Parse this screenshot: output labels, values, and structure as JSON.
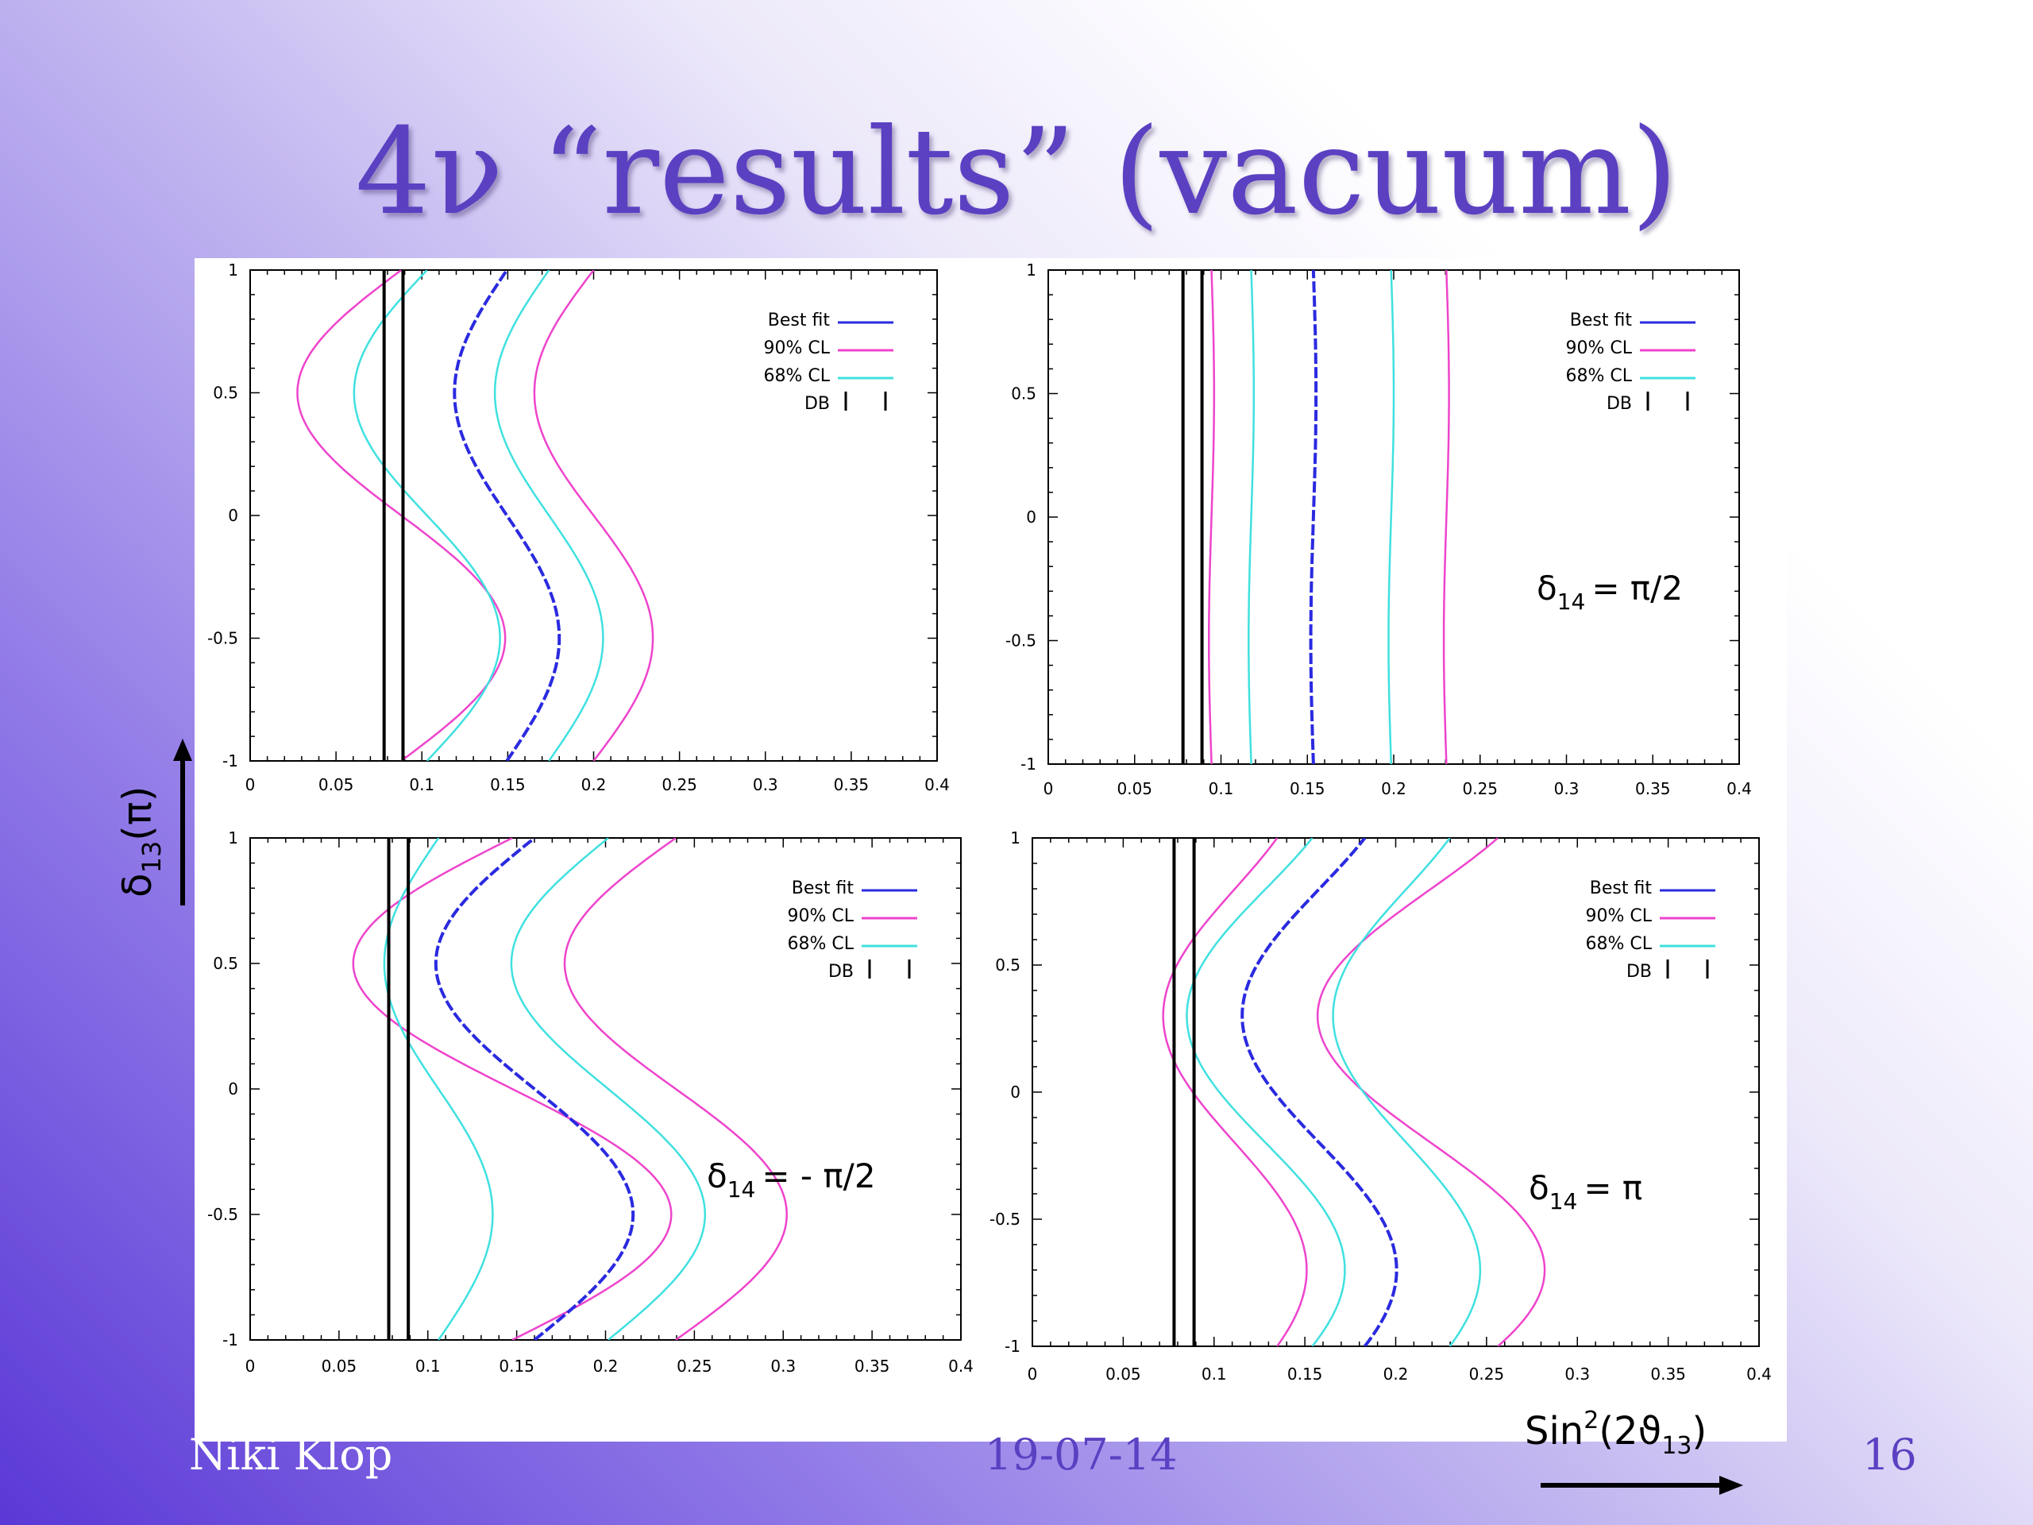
{
  "slide": {
    "title": "4ν “results” (vacuum)",
    "author": "Niki Klop",
    "date": "19-07-14",
    "page": "16",
    "y_axis_label": {
      "main": "δ",
      "sub": "13",
      "rest": "(π)"
    },
    "x_axis_label": {
      "pre": "Sin",
      "sup": "2",
      "mid": "(2ϑ",
      "sub": "13",
      "post": ")"
    }
  },
  "colors": {
    "best_fit": "#2a2ae0",
    "cl90": "#ee44cc",
    "cl68": "#40e0e0",
    "db": "#000000",
    "title": "#5b40c2"
  },
  "chart_data": [
    {
      "type": "line",
      "panel": "top-left",
      "annotation": null,
      "xlim": [
        0,
        0.4
      ],
      "ylim": [
        -1,
        1
      ],
      "xticks": [
        "0",
        "0.05",
        "0.1",
        "0.15",
        "0.2",
        "0.25",
        "0.3",
        "0.35",
        "0.4"
      ],
      "yticks": [
        "1",
        "0.5",
        "0",
        "-0.5",
        "-1"
      ],
      "legend": [
        "Best fit",
        "90% CL",
        "68% CL",
        "DB"
      ],
      "legend_position": "top-right",
      "db_lines": [
        0.078,
        0.089
      ],
      "series": [
        {
          "name": "90% CL",
          "role": "cl90",
          "c": 0.088,
          "a": 0.0605,
          "phase": -0.5
        },
        {
          "name": "90% CL",
          "role": "cl90",
          "c": 0.2,
          "a": 0.0345,
          "phase": -0.5
        },
        {
          "name": "68% CL",
          "role": "cl68",
          "c": 0.103,
          "a": 0.0425,
          "phase": -0.5
        },
        {
          "name": "68% CL",
          "role": "cl68",
          "c": 0.174,
          "a": 0.0315,
          "phase": -0.5
        },
        {
          "name": "Best fit",
          "role": "best",
          "c": 0.1495,
          "a": 0.0305,
          "phase": -0.5
        }
      ]
    },
    {
      "type": "line",
      "panel": "top-right",
      "annotation": {
        "main": "δ",
        "sub": "14",
        "rest": "= π/2"
      },
      "xlim": [
        0,
        0.4
      ],
      "ylim": [
        -1,
        1
      ],
      "xticks": [
        "0",
        "0.05",
        "0.1",
        "0.15",
        "0.2",
        "0.25",
        "0.3",
        "0.35",
        "0.4"
      ],
      "yticks": [
        "1",
        "0.5",
        "0",
        "-0.5",
        "-1"
      ],
      "legend": [
        "Best fit",
        "90% CL",
        "68% CL",
        "DB"
      ],
      "legend_position": "top-right",
      "db_lines": [
        0.078,
        0.089
      ],
      "series": [
        {
          "name": "90% CL",
          "role": "cl90",
          "c": 0.0945,
          "a": 0.0015,
          "phase": 0.5
        },
        {
          "name": "90% CL",
          "role": "cl90",
          "c": 0.2305,
          "a": 0.0015,
          "phase": 0.5
        },
        {
          "name": "68% CL",
          "role": "cl68",
          "c": 0.1175,
          "a": 0.0015,
          "phase": 0.5
        },
        {
          "name": "68% CL",
          "role": "cl68",
          "c": 0.1985,
          "a": 0.0015,
          "phase": 0.5
        },
        {
          "name": "Best fit",
          "role": "best",
          "c": 0.1535,
          "a": 0.0015,
          "phase": 0.5
        }
      ]
    },
    {
      "type": "line",
      "panel": "bottom-left",
      "annotation": {
        "main": "δ",
        "sub": "14",
        "rest": "= - π/2"
      },
      "xlim": [
        0,
        0.4
      ],
      "ylim": [
        -1,
        1
      ],
      "xticks": [
        "0",
        "0.05",
        "0.1",
        "0.15",
        "0.2",
        "0.25",
        "0.3",
        "0.35",
        "0.4"
      ],
      "yticks": [
        "1",
        "0.5",
        "0",
        "-0.5",
        "-1"
      ],
      "legend": [
        "Best fit",
        "90% CL",
        "68% CL",
        "DB"
      ],
      "legend_position": "top-right",
      "db_lines": [
        0.078,
        0.089
      ],
      "series": [
        {
          "name": "90% CL",
          "role": "cl90",
          "c": 0.1475,
          "a": 0.0895,
          "phase": -0.5
        },
        {
          "name": "90% CL",
          "role": "cl90",
          "c": 0.2395,
          "a": 0.0625,
          "phase": -0.5
        },
        {
          "name": "68% CL",
          "role": "cl68",
          "c": 0.106,
          "a": 0.0305,
          "phase": -0.5
        },
        {
          "name": "68% CL",
          "role": "cl68",
          "c": 0.2015,
          "a": 0.0545,
          "phase": -0.5
        },
        {
          "name": "Best fit",
          "role": "best",
          "c": 0.16,
          "a": 0.0555,
          "phase": -0.5
        }
      ]
    },
    {
      "type": "line",
      "panel": "bottom-right",
      "annotation": {
        "main": "δ",
        "sub": "14",
        "rest": "= π"
      },
      "xlim": [
        0,
        0.4
      ],
      "ylim": [
        -1,
        1
      ],
      "xticks": [
        "0",
        "0.05",
        "0.1",
        "0.15",
        "0.2",
        "0.25",
        "0.3",
        "0.35",
        "0.4"
      ],
      "yticks": [
        "1",
        "0.5",
        "0",
        "-0.5",
        "-1"
      ],
      "legend": [
        "Best fit",
        "90% CL",
        "68% CL",
        "DB"
      ],
      "legend_position": "top-right",
      "db_lines": [
        0.078,
        0.089
      ],
      "series": [
        {
          "name": "90% CL",
          "role": "cl90",
          "c": 0.1115,
          "a": 0.0395,
          "phase": -0.7
        },
        {
          "name": "90% CL",
          "role": "cl90",
          "c": 0.2195,
          "a": 0.0625,
          "phase": -0.7
        },
        {
          "name": "68% CL",
          "role": "cl68",
          "c": 0.1285,
          "a": 0.0435,
          "phase": -0.7
        },
        {
          "name": "68% CL",
          "role": "cl68",
          "c": 0.206,
          "a": 0.0405,
          "phase": -0.7
        },
        {
          "name": "Best fit",
          "role": "best",
          "c": 0.158,
          "a": 0.0425,
          "phase": -0.7
        }
      ]
    }
  ]
}
